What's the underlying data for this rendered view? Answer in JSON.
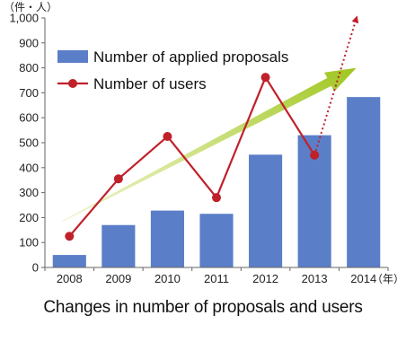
{
  "chart_data": {
    "type": "bar+line",
    "categories": [
      "2008",
      "2009",
      "2010",
      "2011",
      "2012",
      "2013",
      "2014"
    ],
    "series": [
      {
        "name": "Number of applied proposals",
        "kind": "bar",
        "color": "#5b7ec8",
        "values": [
          50,
          170,
          228,
          215,
          452,
          530,
          683
        ]
      },
      {
        "name": "Number of users",
        "kind": "line",
        "color": "#c0202a",
        "values": [
          125,
          355,
          525,
          280,
          762,
          450,
          null
        ]
      }
    ],
    "projection": {
      "from": "2013",
      "from_value": 450,
      "to_value": 1010,
      "color": "#c0202a"
    },
    "trend_arrow": {
      "from": "2008",
      "from_value": 185,
      "to": "2014",
      "to_value": 800,
      "color": "#b5d33a"
    },
    "y_ticks": [
      "0",
      "100",
      "200",
      "300",
      "400",
      "500",
      "600",
      "700",
      "800",
      "900",
      "1,000"
    ],
    "ylim": [
      0,
      1000
    ],
    "y_unit": "（件・人）",
    "x_unit": "（年）",
    "legend_position": "top-left",
    "grid": false,
    "caption": "Changes in number of proposals and users"
  }
}
